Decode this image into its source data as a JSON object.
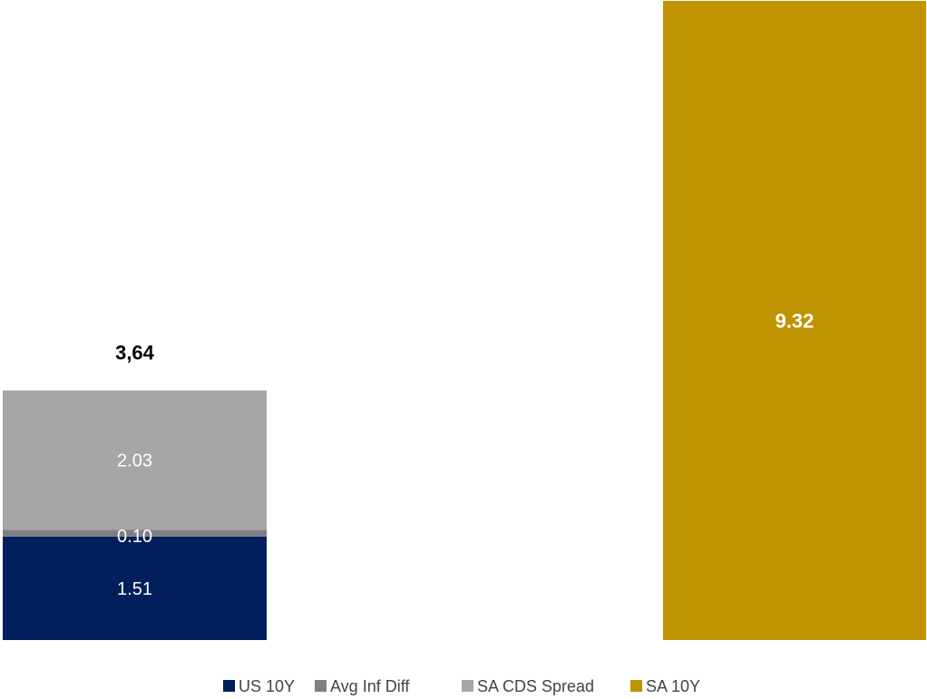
{
  "chart_data": {
    "type": "bar",
    "stacked": true,
    "categories": [
      "",
      ""
    ],
    "series": [
      {
        "name": "US 10Y",
        "color": "#001f5c",
        "values": [
          1.51,
          null
        ],
        "labels": [
          "1.51",
          null
        ]
      },
      {
        "name": "Avg Inf Diff",
        "color": "#808080",
        "values": [
          0.1,
          null
        ],
        "labels": [
          "0.10",
          null
        ]
      },
      {
        "name": "SA CDS Spread",
        "color": "#a6a6a6",
        "values": [
          2.03,
          null
        ],
        "labels": [
          "2.03",
          null
        ]
      },
      {
        "name": "SA 10Y",
        "color": "#c09300",
        "values": [
          null,
          9.32
        ],
        "labels": [
          null,
          "9.32"
        ]
      }
    ],
    "totals": [
      "3,64",
      null
    ],
    "ylim": [
      0,
      9.32
    ],
    "grid": false,
    "legend": "bottom",
    "title": "",
    "xlabel": "",
    "ylabel": ""
  }
}
